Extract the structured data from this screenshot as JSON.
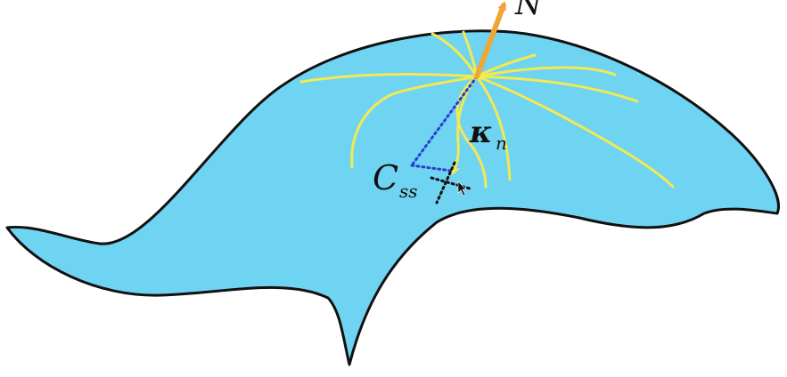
{
  "labels": {
    "normal": "N",
    "curvature_symbol": "κ",
    "curvature_subscript": "n",
    "center_main": "C",
    "center_subscript": "ss"
  },
  "colors": {
    "surface_fill": "#6fd3f2",
    "surface_outline": "#111111",
    "normal_vector": "#f0a534",
    "curves": "#f2ea52",
    "dotted_line": "#2a3fd0",
    "tangent_marks": "#111111"
  },
  "icons": {
    "cursor": "mouse-pointer-icon"
  }
}
